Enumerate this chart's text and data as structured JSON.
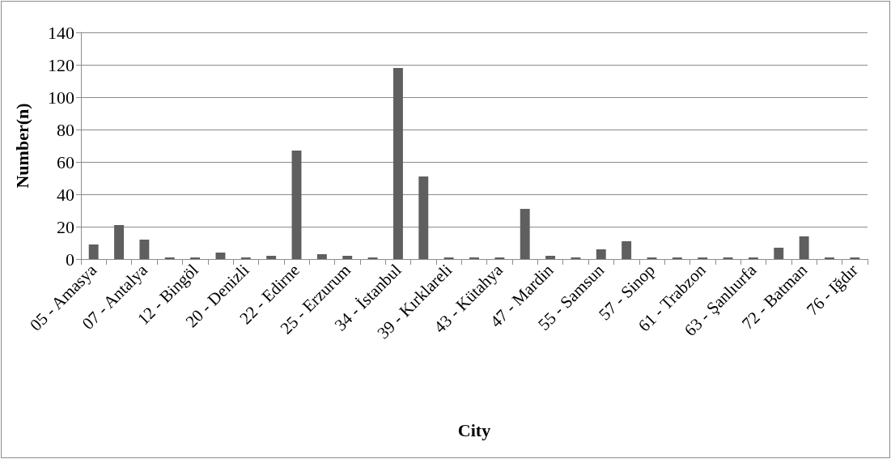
{
  "chart_data": {
    "type": "bar",
    "xlabel": "City",
    "ylabel": "Number(n)",
    "categories": [
      "05 - Amasya",
      null,
      "07 - Antalya",
      null,
      "12 - Bingöl",
      null,
      "20 - Denizli",
      null,
      "22 - Edirne",
      null,
      "25 - Erzurum",
      null,
      "34 - İstanbul",
      null,
      "39 - Kırklareli",
      null,
      "43 - Kütahya",
      null,
      "47 - Mardin",
      null,
      "55 - Samsun",
      null,
      "57 - Sinop",
      null,
      "61 - Trabzon",
      null,
      "63 - Şanlıurfa",
      null,
      "72 - Batman",
      null,
      "76 - Iğdır"
    ],
    "values": [
      9,
      21,
      12,
      1,
      1,
      4,
      1,
      2,
      67,
      3,
      2,
      1,
      118,
      51,
      1,
      1,
      1,
      31,
      2,
      1,
      6,
      11,
      1,
      1,
      1,
      1,
      1,
      7,
      14,
      1,
      1
    ],
    "color": "#5f5f5f",
    "ylim": [
      0,
      140
    ],
    "yticks": [
      0,
      20,
      40,
      60,
      80,
      100,
      120,
      140
    ],
    "grid": "y"
  }
}
